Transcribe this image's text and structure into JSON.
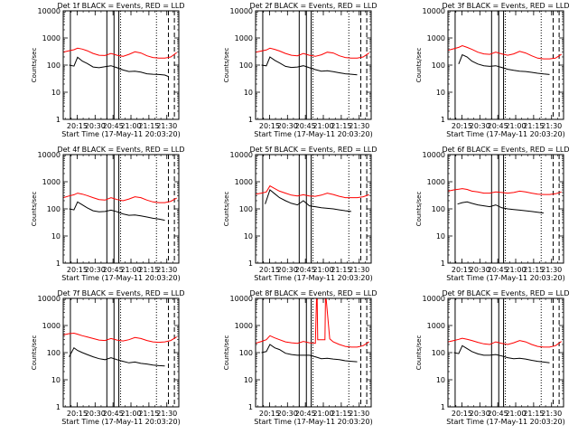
{
  "figure": {
    "ylabel": "Counts/sec",
    "xlabel": "Start Time (17-May-11 20:03:20)",
    "xticks": [
      {
        "label": "20:15",
        "t": 11.67
      },
      {
        "label": "20:30",
        "t": 26.67
      },
      {
        "label": "20:45",
        "t": 41.67
      },
      {
        "label": "21:00",
        "t": 56.67
      },
      {
        "label": "21:15",
        "t": 71.67
      },
      {
        "label": "21:30",
        "t": 86.67
      }
    ],
    "yticks": [
      {
        "label": "1",
        "v": 1
      },
      {
        "label": "10",
        "v": 10
      },
      {
        "label": "100",
        "v": 100
      },
      {
        "label": "1000",
        "v": 1000
      },
      {
        "label": "10000",
        "v": 10000
      }
    ],
    "xlim_minutes": [
      0,
      96.7
    ],
    "ylim": [
      1,
      10000
    ],
    "yscale": "log",
    "colors": {
      "events": "#000000",
      "lld": "#ff0000",
      "axes": "#000000"
    }
  },
  "chart_data": [
    {
      "type": "line",
      "title": "Det 1f BLACK = Events, RED = LLD",
      "x_unit": "minutes since 20:03:20",
      "series": [
        {
          "name": "Events",
          "color": "#000000",
          "x": [
            5,
            9,
            12,
            16,
            20,
            25,
            30,
            35,
            40,
            45,
            50,
            55,
            60,
            65,
            70,
            75,
            80,
            85,
            88
          ],
          "values": [
            100,
            92,
            195,
            140,
            115,
            85,
            80,
            88,
            95,
            80,
            66,
            58,
            60,
            55,
            48,
            46,
            45,
            43,
            38
          ]
        },
        {
          "name": "LLD",
          "color": "#ff0000",
          "x": [
            0,
            5,
            9,
            12,
            16,
            20,
            25,
            30,
            35,
            40,
            45,
            50,
            55,
            60,
            65,
            70,
            75,
            80,
            85,
            90,
            95
          ],
          "values": [
            300,
            340,
            370,
            420,
            390,
            340,
            270,
            230,
            225,
            270,
            230,
            210,
            250,
            310,
            280,
            220,
            190,
            180,
            180,
            200,
            290
          ]
        }
      ],
      "vlines_solid": [
        6,
        36.5,
        42.5,
        46.5
      ],
      "vlines_dotted": [
        48,
        78
      ],
      "vlines_dashed": [
        88,
        93
      ]
    },
    {
      "type": "line",
      "title": "Det 2f BLACK = Events, RED = LLD",
      "x_unit": "minutes since 20:03:20",
      "series": [
        {
          "name": "Events",
          "color": "#000000",
          "x": [
            5,
            9,
            12,
            16,
            20,
            25,
            30,
            35,
            40,
            45,
            50,
            55,
            60,
            65,
            70,
            75,
            80,
            85
          ],
          "values": [
            100,
            94,
            200,
            150,
            120,
            90,
            82,
            85,
            95,
            80,
            68,
            60,
            62,
            57,
            52,
            48,
            46,
            44
          ]
        },
        {
          "name": "LLD",
          "color": "#ff0000",
          "x": [
            0,
            5,
            9,
            12,
            16,
            20,
            25,
            30,
            35,
            40,
            45,
            50,
            55,
            60,
            65,
            70,
            75,
            80,
            85,
            90,
            95
          ],
          "values": [
            300,
            330,
            360,
            420,
            380,
            330,
            270,
            230,
            220,
            270,
            230,
            210,
            240,
            300,
            280,
            220,
            190,
            180,
            180,
            200,
            280
          ]
        }
      ],
      "vlines_solid": [
        6,
        36.5,
        42.5,
        46.5
      ],
      "vlines_dotted": [
        48,
        78
      ],
      "vlines_dashed": [
        88,
        93
      ]
    },
    {
      "type": "line",
      "title": "Det 3f BLACK = Events, RED = LLD",
      "x_unit": "minutes since 20:03:20",
      "series": [
        {
          "name": "Events",
          "color": "#000000",
          "x": [
            9,
            12,
            16,
            20,
            25,
            30,
            35,
            40,
            45,
            50,
            55,
            60,
            65,
            70,
            75,
            80,
            85
          ],
          "values": [
            110,
            240,
            200,
            140,
            110,
            95,
            90,
            95,
            82,
            70,
            64,
            60,
            58,
            54,
            50,
            47,
            45
          ]
        },
        {
          "name": "LLD",
          "color": "#ff0000",
          "x": [
            0,
            5,
            9,
            12,
            16,
            20,
            25,
            30,
            35,
            40,
            45,
            50,
            55,
            60,
            65,
            70,
            75,
            80,
            85,
            90,
            95
          ],
          "values": [
            350,
            400,
            450,
            520,
            450,
            380,
            300,
            260,
            250,
            300,
            260,
            230,
            260,
            320,
            280,
            220,
            180,
            170,
            170,
            180,
            250
          ]
        }
      ],
      "vlines_solid": [
        6,
        36.5,
        42.5,
        46.5
      ],
      "vlines_dotted": [
        48,
        78
      ],
      "vlines_dashed": [
        88,
        93
      ]
    },
    {
      "type": "line",
      "title": "Det 4f BLACK = Events, RED = LLD",
      "x_unit": "minutes since 20:03:20",
      "series": [
        {
          "name": "Events",
          "color": "#000000",
          "x": [
            5,
            9,
            12,
            16,
            20,
            25,
            30,
            35,
            40,
            45,
            50,
            55,
            60,
            65,
            70,
            75,
            80,
            85
          ],
          "values": [
            100,
            92,
            180,
            140,
            110,
            85,
            78,
            80,
            90,
            78,
            65,
            58,
            60,
            55,
            50,
            45,
            42,
            38
          ]
        },
        {
          "name": "LLD",
          "color": "#ff0000",
          "x": [
            0,
            5,
            9,
            12,
            16,
            20,
            25,
            30,
            35,
            40,
            45,
            50,
            55,
            60,
            65,
            70,
            75,
            80,
            85,
            90,
            95
          ],
          "values": [
            260,
            300,
            330,
            380,
            350,
            310,
            260,
            220,
            210,
            260,
            220,
            200,
            230,
            280,
            260,
            210,
            180,
            170,
            170,
            190,
            250
          ]
        }
      ],
      "vlines_solid": [
        6,
        36.5,
        42.5,
        46.5
      ],
      "vlines_dotted": [
        48,
        78
      ],
      "vlines_dashed": [
        88,
        93
      ]
    },
    {
      "type": "line",
      "title": "Det 5f BLACK = Events, RED = LLD",
      "x_unit": "minutes since 20:03:20",
      "series": [
        {
          "name": "Events",
          "color": "#000000",
          "x": [
            8,
            12,
            16,
            20,
            25,
            30,
            35,
            40,
            45,
            50,
            55,
            60,
            65,
            70,
            75,
            80
          ],
          "values": [
            150,
            500,
            360,
            260,
            200,
            160,
            140,
            200,
            130,
            120,
            110,
            105,
            100,
            92,
            85,
            80
          ]
        },
        {
          "name": "LLD",
          "color": "#ff0000",
          "x": [
            0,
            5,
            9,
            12,
            16,
            20,
            25,
            30,
            35,
            40,
            45,
            50,
            55,
            60,
            65,
            70,
            75,
            80,
            85,
            90,
            95
          ],
          "values": [
            350,
            380,
            420,
            700,
            560,
            450,
            380,
            320,
            300,
            330,
            300,
            290,
            320,
            380,
            340,
            290,
            260,
            260,
            260,
            280,
            330
          ]
        }
      ],
      "vlines_solid": [
        6,
        36.5,
        42.5,
        46.5
      ],
      "vlines_dotted": [
        48,
        78
      ],
      "vlines_dashed": [
        88,
        93
      ]
    },
    {
      "type": "line",
      "title": "Det 6f BLACK = Events, RED = LLD",
      "x_unit": "minutes since 20:03:20",
      "series": [
        {
          "name": "Events",
          "color": "#000000",
          "x": [
            8,
            12,
            16,
            20,
            25,
            30,
            35,
            40,
            45,
            50,
            55,
            60,
            65,
            70,
            75,
            80
          ],
          "values": [
            150,
            170,
            180,
            160,
            140,
            130,
            120,
            140,
            110,
            100,
            95,
            90,
            85,
            80,
            75,
            70
          ]
        },
        {
          "name": "LLD",
          "color": "#ff0000",
          "x": [
            0,
            5,
            9,
            12,
            16,
            20,
            25,
            30,
            35,
            40,
            45,
            50,
            55,
            60,
            65,
            70,
            75,
            80,
            85,
            90,
            95
          ],
          "values": [
            450,
            500,
            530,
            560,
            520,
            450,
            420,
            380,
            380,
            420,
            400,
            380,
            400,
            450,
            420,
            380,
            350,
            340,
            340,
            360,
            420
          ]
        }
      ],
      "vlines_solid": [
        6,
        36.5,
        42.5,
        46.5
      ],
      "vlines_dotted": [
        48,
        78
      ],
      "vlines_dashed": [
        88,
        93
      ]
    },
    {
      "type": "line",
      "title": "Det 7f BLACK = Events, RED = LLD",
      "x_unit": "minutes since 20:03:20",
      "series": [
        {
          "name": "Events",
          "color": "#000000",
          "x": [
            5,
            9,
            12,
            16,
            20,
            25,
            30,
            35,
            40,
            45,
            50,
            55,
            60,
            65,
            70,
            75,
            80,
            85
          ],
          "values": [
            70,
            150,
            120,
            100,
            85,
            70,
            60,
            55,
            65,
            55,
            48,
            42,
            45,
            40,
            38,
            35,
            33,
            32
          ]
        },
        {
          "name": "LLD",
          "color": "#ff0000",
          "x": [
            0,
            5,
            9,
            12,
            16,
            20,
            25,
            30,
            35,
            40,
            45,
            50,
            55,
            60,
            65,
            70,
            75,
            80,
            85,
            90,
            95
          ],
          "values": [
            450,
            500,
            520,
            480,
            420,
            380,
            330,
            290,
            280,
            330,
            290,
            270,
            300,
            360,
            330,
            280,
            250,
            240,
            250,
            280,
            380
          ]
        }
      ],
      "vlines_solid": [
        6,
        36.5,
        42.5,
        46.5
      ],
      "vlines_dotted": [
        48,
        78
      ],
      "vlines_dashed": [
        88,
        93
      ]
    },
    {
      "type": "line",
      "title": "Det 8f BLACK = Events, RED = LLD",
      "x_unit": "minutes since 20:03:20",
      "series": [
        {
          "name": "Events",
          "color": "#000000",
          "x": [
            5,
            9,
            12,
            16,
            20,
            25,
            30,
            35,
            40,
            45,
            50,
            55,
            60,
            65,
            70,
            75,
            80,
            85
          ],
          "values": [
            100,
            110,
            200,
            150,
            130,
            95,
            85,
            80,
            80,
            80,
            70,
            60,
            62,
            58,
            55,
            50,
            48,
            46
          ]
        },
        {
          "name": "LLD",
          "color": "#ff0000",
          "x": [
            0,
            5,
            9,
            12,
            16,
            20,
            25,
            30,
            35,
            40,
            45,
            50,
            51,
            51.5,
            52,
            55,
            58,
            58.5,
            59,
            62,
            65,
            70,
            75,
            80,
            85,
            90,
            95
          ],
          "values": [
            220,
            260,
            300,
            420,
            350,
            300,
            250,
            230,
            220,
            260,
            230,
            220,
            10000,
            10000,
            300,
            300,
            300,
            10000,
            10000,
            320,
            250,
            200,
            170,
            160,
            160,
            180,
            250
          ]
        }
      ],
      "vlines_solid": [
        6,
        36.5,
        42.5,
        46.5
      ],
      "vlines_dotted": [
        48,
        78
      ],
      "vlines_dashed": [
        88,
        93
      ]
    },
    {
      "type": "line",
      "title": "Det 9f BLACK = Events, RED = LLD",
      "x_unit": "minutes since 20:03:20",
      "series": [
        {
          "name": "Events",
          "color": "#000000",
          "x": [
            5,
            9,
            12,
            16,
            20,
            25,
            30,
            35,
            40,
            45,
            50,
            55,
            60,
            65,
            70,
            75,
            80,
            85
          ],
          "values": [
            100,
            92,
            180,
            140,
            110,
            90,
            80,
            80,
            85,
            75,
            65,
            60,
            62,
            58,
            52,
            48,
            45,
            42
          ]
        },
        {
          "name": "LLD",
          "color": "#ff0000",
          "x": [
            0,
            5,
            9,
            12,
            16,
            20,
            25,
            30,
            35,
            40,
            45,
            50,
            55,
            60,
            65,
            70,
            75,
            80,
            85,
            90,
            95
          ],
          "values": [
            250,
            280,
            310,
            340,
            310,
            280,
            240,
            210,
            200,
            250,
            220,
            200,
            230,
            280,
            250,
            200,
            170,
            160,
            160,
            180,
            260
          ]
        }
      ],
      "vlines_solid": [
        6,
        36.5,
        42.5,
        46.5
      ],
      "vlines_dotted": [
        48,
        78
      ],
      "vlines_dashed": [
        88,
        93
      ]
    }
  ]
}
